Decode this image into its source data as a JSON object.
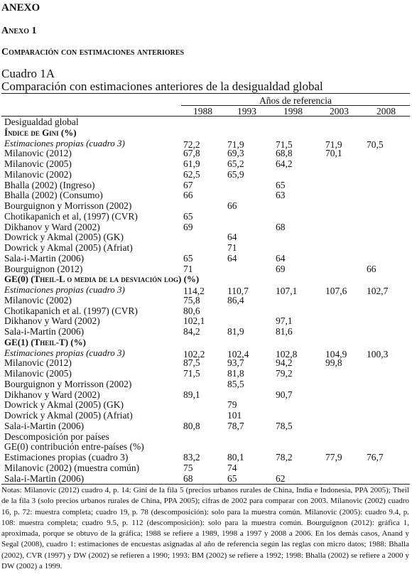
{
  "header": {
    "annex": "ANEXO",
    "annex_sub": "Anexo 1",
    "section_title": "Comparación con estimaciones anteriores",
    "table_number": "Cuadro 1A",
    "table_title": "Comparación con estimaciones anteriores de la desigualdad global"
  },
  "table": {
    "group_header": "Años de referencia",
    "columns": [
      "1988",
      "1993",
      "1998",
      "2003",
      "2008"
    ],
    "rows": [
      {
        "style": "plain",
        "label": "Desigualdad global",
        "cells": [
          null,
          null,
          null,
          null,
          null
        ]
      },
      {
        "style": "heading",
        "label": "Índice de Gini (%)",
        "cells": [
          null,
          null,
          null,
          null,
          null
        ]
      },
      {
        "style": "italic",
        "label": "Estimaciones propias (cuadro 3)",
        "cells": [
          "72,2",
          "71,9",
          "71,5",
          "71,9",
          "70,5"
        ]
      },
      {
        "style": "plain",
        "label": "Milanovic (2012)",
        "cells": [
          "67,8",
          "69,3",
          "68,8",
          "70,1",
          null
        ]
      },
      {
        "style": "plain",
        "label": "Milanovic (2005)",
        "cells": [
          "61,9",
          "65,2",
          "64,2",
          null,
          null
        ]
      },
      {
        "style": "plain",
        "label": "Milanovic (2002)",
        "cells": [
          "62,5",
          "65,9",
          null,
          null,
          null
        ]
      },
      {
        "style": "plain",
        "label": "Bhalla (2002) (Ingreso)",
        "cells": [
          "67",
          null,
          "65",
          null,
          null
        ]
      },
      {
        "style": "plain",
        "label": "Bhalla (2002) (Consumo)",
        "cells": [
          "66",
          null,
          "63",
          null,
          null
        ]
      },
      {
        "style": "plain",
        "label": "Bourguignon y Morrisson (2002)",
        "cells": [
          null,
          "66",
          null,
          null,
          null
        ]
      },
      {
        "style": "plain",
        "label": "Chotikapanich et al, (1997) (CVR)",
        "cells": [
          "65",
          null,
          null,
          null,
          null
        ]
      },
      {
        "style": "plain",
        "label": "Dikhanov y Ward (2002)",
        "cells": [
          "69",
          null,
          "68",
          null,
          null
        ]
      },
      {
        "style": "plain",
        "label": "Dowrick y Akmal (2005) (GK)",
        "cells": [
          null,
          "64",
          null,
          null,
          null
        ]
      },
      {
        "style": "plain",
        "label": "Dowrick y Akmal (2005) (Afriat)",
        "cells": [
          null,
          "71",
          null,
          null,
          null
        ]
      },
      {
        "style": "plain",
        "label": "Sala-i-Martin (2006)",
        "cells": [
          "65",
          "64",
          "64",
          null,
          null
        ]
      },
      {
        "style": "plain",
        "label": "Bourguignon (2012)",
        "cells": [
          "71",
          null,
          "69",
          null,
          "66"
        ]
      },
      {
        "style": "heading",
        "label": "GE(0) (Theil-L o media de la desviación log) (%)",
        "cells": [
          null,
          null,
          null,
          null,
          null
        ]
      },
      {
        "style": "italic",
        "label": "Estimaciones propias (cuadro 3)",
        "cells": [
          "114,2",
          "110,7",
          "107,1",
          "107,6",
          "102,7"
        ]
      },
      {
        "style": "plain",
        "label": "Milanovic (2002)",
        "cells": [
          "75,8",
          "86,4",
          null,
          null,
          null
        ]
      },
      {
        "style": "plain",
        "label": "Chotikapanich et al. (1997) (CVR)",
        "cells": [
          "80,6",
          null,
          null,
          null,
          null
        ]
      },
      {
        "style": "plain",
        "label": "Dikhanov y Ward (2002)",
        "cells": [
          "102,1",
          null,
          "97,1",
          null,
          null
        ]
      },
      {
        "style": "plain",
        "label": "Sala-i-Martin (2006)",
        "cells": [
          "84,2",
          "81,9",
          "81,6",
          null,
          null
        ]
      },
      {
        "style": "heading",
        "label": "GE(1) (Theil-T) (%)",
        "cells": [
          null,
          null,
          null,
          null,
          null
        ]
      },
      {
        "style": "italic",
        "label": "Estimaciones propias (cuadro 3)",
        "cells": [
          "102,2",
          "102,4",
          "102,8",
          "104,9",
          "100,3"
        ]
      },
      {
        "style": "plain",
        "label": "Milanovic (2012)",
        "cells": [
          "87,5",
          "93,7",
          "94,2",
          "99,8",
          null
        ]
      },
      {
        "style": "plain",
        "label": "Milanovic (2005)",
        "cells": [
          "71,5",
          "81,8",
          "79,2",
          null,
          null
        ]
      },
      {
        "style": "plain",
        "label": "Bourguignon y Morrisson (2002)",
        "cells": [
          null,
          "85,5",
          null,
          null,
          null
        ]
      },
      {
        "style": "plain",
        "label": "Dikhanov y Ward (2002)",
        "cells": [
          "89,1",
          null,
          "90,7",
          null,
          null
        ]
      },
      {
        "style": "plain",
        "label": "Dowrick y Akmal (2005) (GK)",
        "cells": [
          null,
          "79",
          null,
          null,
          null
        ]
      },
      {
        "style": "plain",
        "label": "Dowrick y Akmal (2005) (Afriat)",
        "cells": [
          null,
          "101",
          null,
          null,
          null
        ]
      },
      {
        "style": "plain",
        "label": "Sala-i-Martin (2006)",
        "cells": [
          "80,8",
          "78,7",
          "78,5",
          null,
          null
        ]
      },
      {
        "style": "plain",
        "label": "Descomposición por países",
        "cells": [
          null,
          null,
          null,
          null,
          null
        ]
      },
      {
        "style": "plain",
        "label": "GE(0) contribución entre-países (%)",
        "cells": [
          null,
          null,
          null,
          null,
          null
        ]
      },
      {
        "style": "plain",
        "label": "Estimaciones propias (cuadro 3)",
        "cells": [
          "83,2",
          "80,1",
          "78,2",
          "77,9",
          "76,7"
        ]
      },
      {
        "style": "plain",
        "label": "Milanovic (2002) (muestra común)",
        "cells": [
          "75",
          "74",
          null,
          null,
          null
        ]
      },
      {
        "style": "plain",
        "label": "Sala-i-Martin (2006)",
        "cells": [
          "68",
          "65",
          "62",
          null,
          null
        ]
      }
    ]
  },
  "notes": "Notas: Milanovic (2012) cuadro 4, p. 14: Gini de la fila 5 (precios urbanos rurales de China, India e Indonesia, PPA 2005); Theil de la fila 3 (solo precios urbanos rurales de China, PPA 2005); cifras de 2002 para comparar con 2003. Milanovic (2002) cuadro 16, p. 72: muestra completa; cuadro 19, p. 78 (descomposición): solo para la muestra común. Milanovic (2005): cuadro 9.4, p. 108: muestra completa; cuadro 9.5, p. 112 (descomposición): solo para la muestra común. Bourguignon (2012): gráfica 1, aproximada, porque se obtuvo de la gráfica; 1988 se refiere a 1989, 1998 a 1997 y 2008 a 2006. En los demás casos, Anand y Segal (2008), cuadro 1: estimaciones de encuestas asignadas al año de referencia según las reglas con micro datos; 1988: Bhalla (2002), CVR (1997) y DW (2002) se refieren a 1990; 1993: BM (2002) se refiere a 1992; 1998: Bhalla (2002) se refiere a 2000 y DW (2002) a 1999."
}
